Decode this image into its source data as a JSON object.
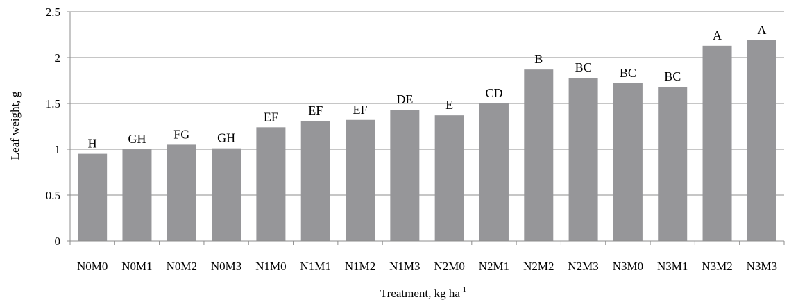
{
  "chart_data": {
    "type": "bar",
    "title": "",
    "xlabel": "Treatment, kg ha",
    "xlabel_superscript": "-1",
    "ylabel": "Leaf weight, g",
    "ylim": [
      0,
      2.5
    ],
    "yticks": [
      0,
      0.5,
      1,
      1.5,
      2,
      2.5
    ],
    "ytick_labels": [
      "0",
      "0.5",
      "1",
      "1.5",
      "2",
      "2.5"
    ],
    "grid": true,
    "bar_color": "#969699",
    "categories": [
      "N0M0",
      "N0M1",
      "N0M2",
      "N0M3",
      "N1M0",
      "N1M1",
      "N1M2",
      "N1M3",
      "N2M0",
      "N2M1",
      "N2M2",
      "N2M3",
      "N3M0",
      "N3M1",
      "N3M2",
      "N3M3"
    ],
    "values": [
      0.95,
      1.0,
      1.05,
      1.01,
      1.24,
      1.31,
      1.32,
      1.43,
      1.37,
      1.5,
      1.87,
      1.78,
      1.72,
      1.68,
      2.13,
      2.19
    ],
    "labels": [
      "H",
      "GH",
      "FG",
      "GH",
      "EF",
      "EF",
      "EF",
      "DE",
      "E",
      "CD",
      "B",
      "BC",
      "BC",
      "BC",
      "A",
      "A"
    ]
  }
}
